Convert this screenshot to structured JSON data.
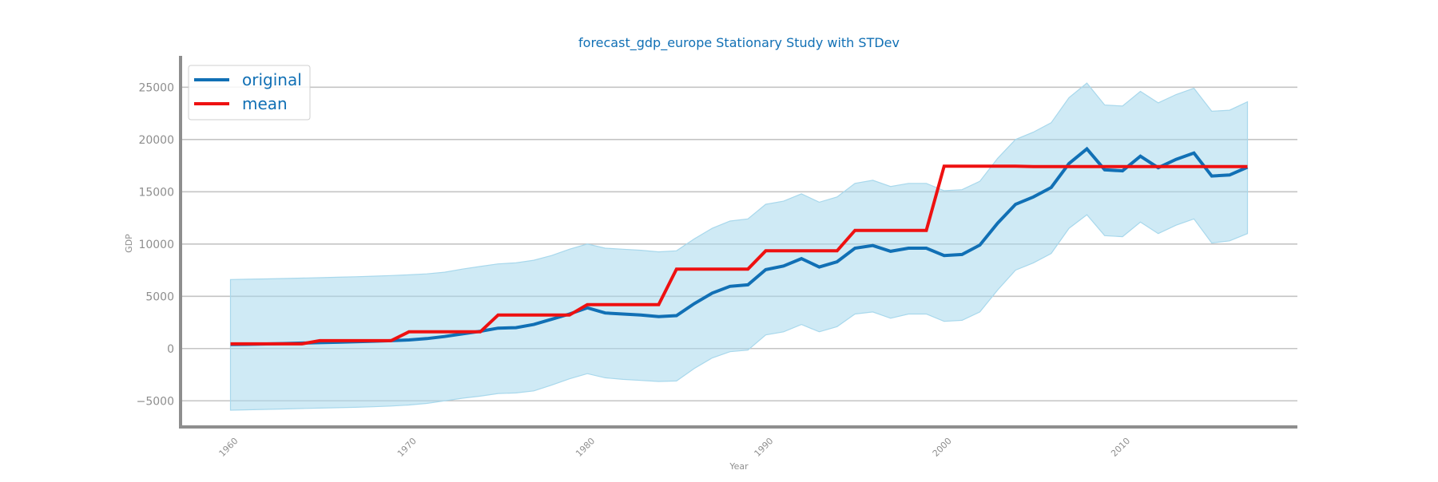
{
  "chart_data": {
    "type": "line",
    "title": "forecast_gdp_europe Stationary Study with STDev",
    "xlabel": "Year",
    "ylabel": "GDP",
    "xlim": [
      1957.2,
      2019.8
    ],
    "ylim": [
      -7500,
      28000
    ],
    "grid": "horizontal",
    "legend_position": "top-left",
    "xticks": [
      {
        "value": 1960,
        "label": "1960"
      },
      {
        "value": 1970,
        "label": "1970"
      },
      {
        "value": 1980,
        "label": "1980"
      },
      {
        "value": 1990,
        "label": "1990"
      },
      {
        "value": 2000,
        "label": "2000"
      },
      {
        "value": 2010,
        "label": "2010"
      }
    ],
    "yticks": [
      {
        "value": -5000,
        "label": "−5000"
      },
      {
        "value": 0,
        "label": "0"
      },
      {
        "value": 5000,
        "label": "5000"
      },
      {
        "value": 10000,
        "label": "10000"
      },
      {
        "value": 15000,
        "label": "15000"
      },
      {
        "value": 20000,
        "label": "20000"
      },
      {
        "value": 25000,
        "label": "25000"
      }
    ],
    "x": [
      1960,
      1961,
      1962,
      1963,
      1964,
      1965,
      1966,
      1967,
      1968,
      1969,
      1970,
      1971,
      1972,
      1973,
      1974,
      1975,
      1976,
      1977,
      1978,
      1979,
      1980,
      1981,
      1982,
      1983,
      1984,
      1985,
      1986,
      1987,
      1988,
      1989,
      1990,
      1991,
      1992,
      1993,
      1994,
      1995,
      1996,
      1997,
      1998,
      1999,
      2000,
      2001,
      2002,
      2003,
      2004,
      2005,
      2006,
      2007,
      2008,
      2009,
      2010,
      2011,
      2012,
      2013,
      2014,
      2015,
      2016,
      2017
    ],
    "series": [
      {
        "name": "original",
        "color": "#1170b5",
        "values": [
          380,
          400,
          440,
          480,
          520,
          560,
          600,
          650,
          700,
          750,
          820,
          950,
          1150,
          1400,
          1650,
          1950,
          2000,
          2300,
          2800,
          3300,
          3900,
          3400,
          3300,
          3200,
          3050,
          3150,
          4300,
          5300,
          5950,
          6100,
          7550,
          7900,
          8600,
          7800,
          8300,
          9600,
          9850,
          9300,
          9600,
          9600,
          8900,
          9000,
          9900,
          12000,
          13800,
          14500,
          15400,
          17700,
          19100,
          17100,
          17000,
          18400,
          17300,
          18100,
          18700,
          16500,
          16600,
          17350
        ]
      },
      {
        "name": "mean",
        "color": "#ee1111",
        "values": [
          450,
          450,
          450,
          450,
          450,
          750,
          750,
          750,
          750,
          750,
          1600,
          1600,
          1600,
          1600,
          1600,
          3200,
          3200,
          3200,
          3200,
          3200,
          4200,
          4200,
          4200,
          4200,
          4200,
          7600,
          7600,
          7600,
          7600,
          7600,
          9350,
          9350,
          9350,
          9350,
          9350,
          11300,
          11300,
          11300,
          11300,
          11300,
          17450,
          17450,
          17450,
          17450,
          17450,
          17400,
          17400,
          17400,
          17400,
          17400,
          17400,
          17400,
          17400,
          17400,
          17400,
          17400,
          17400,
          17400
        ]
      }
    ],
    "band": {
      "name": "std",
      "color": "#a8d8ec",
      "upper": [
        6600,
        6630,
        6660,
        6700,
        6740,
        6780,
        6820,
        6870,
        6920,
        6980,
        7050,
        7140,
        7300,
        7600,
        7850,
        8100,
        8200,
        8450,
        8900,
        9500,
        10000,
        9600,
        9500,
        9400,
        9250,
        9350,
        10500,
        11500,
        12200,
        12400,
        13800,
        14100,
        14800,
        14000,
        14500,
        15800,
        16100,
        15500,
        15800,
        15800,
        15100,
        15200,
        16000,
        18200,
        20000,
        20700,
        21600,
        24000,
        25400,
        23300,
        23200,
        24600,
        23500,
        24300,
        24900,
        22700,
        22800,
        23600
      ],
      "lower": [
        -5900,
        -5860,
        -5820,
        -5780,
        -5740,
        -5700,
        -5660,
        -5620,
        -5570,
        -5500,
        -5400,
        -5250,
        -5000,
        -4750,
        -4550,
        -4300,
        -4250,
        -4050,
        -3500,
        -2900,
        -2400,
        -2800,
        -2950,
        -3050,
        -3150,
        -3100,
        -1900,
        -900,
        -300,
        -150,
        1300,
        1600,
        2300,
        1600,
        2100,
        3300,
        3500,
        2900,
        3300,
        3300,
        2600,
        2700,
        3500,
        5600,
        7500,
        8200,
        9100,
        11500,
        12800,
        10800,
        10700,
        12100,
        11000,
        11800,
        12400,
        10100,
        10300,
        11000
      ]
    }
  }
}
